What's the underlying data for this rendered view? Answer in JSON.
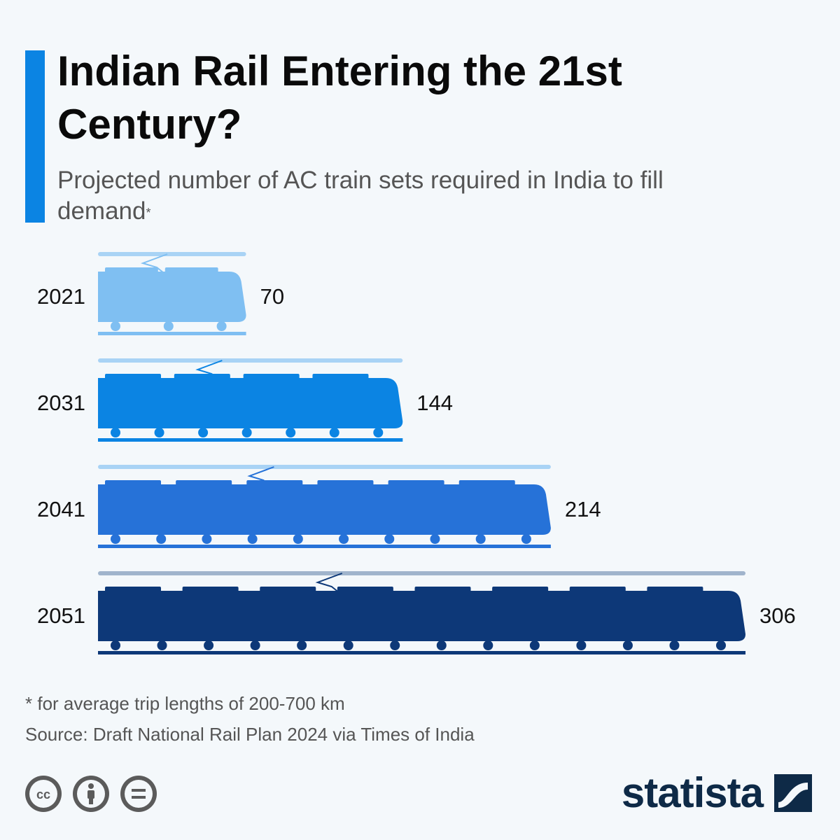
{
  "header": {
    "title": "Indian Rail Entering the 21st Century?",
    "subtitle": "Projected number of AC train sets required in India to fill demand",
    "subtitle_mark": "*"
  },
  "chart_data": {
    "type": "bar",
    "categories": [
      "2021",
      "2031",
      "2041",
      "2051"
    ],
    "values": [
      70,
      144,
      214,
      306
    ],
    "colors": [
      "#7fbff2",
      "#0b84e3",
      "#2672d8",
      "#0d3878"
    ],
    "rail_colors": [
      "#a9d3f5",
      "#a9d3f5",
      "#a9d3f5",
      "#a0b4cc"
    ],
    "orientation": "horizontal",
    "bar_style": "train-shaped"
  },
  "footer": {
    "footnote": "* for average trip lengths of 200-700 km",
    "source": "Source: Draft National Rail Plan 2024 via Times of India",
    "license_icons": [
      "cc-icon",
      "by-attribution-icon",
      "no-derivatives-icon"
    ],
    "brand": "statista",
    "brand_color": "#0e2a47"
  }
}
